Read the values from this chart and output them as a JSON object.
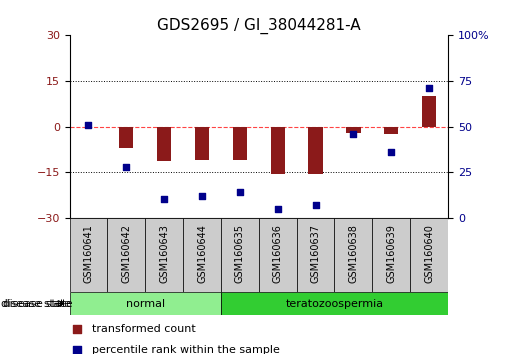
{
  "title": "GDS2695 / GI_38044281-A",
  "samples": [
    "GSM160641",
    "GSM160642",
    "GSM160643",
    "GSM160644",
    "GSM160635",
    "GSM160636",
    "GSM160637",
    "GSM160638",
    "GSM160639",
    "GSM160640"
  ],
  "disease_state_groups": [
    {
      "label": "normal",
      "start": 0,
      "end": 4,
      "color": "#90EE90"
    },
    {
      "label": "teratozoospermia",
      "start": 4,
      "end": 10,
      "color": "#32CD32"
    }
  ],
  "transformed_count": [
    0.0,
    -7.0,
    -11.5,
    -11.0,
    -11.0,
    -15.5,
    -15.5,
    -2.0,
    -2.5,
    10.0
  ],
  "percentile_rank": [
    51,
    28,
    10,
    12,
    14,
    5,
    7,
    46,
    36,
    71
  ],
  "ylim_left": [
    -30,
    30
  ],
  "ylim_right": [
    0,
    100
  ],
  "yticks_left": [
    -30,
    -15,
    0,
    15,
    30
  ],
  "yticks_right": [
    0,
    25,
    50,
    75,
    100
  ],
  "bar_color": "#8B1A1A",
  "dot_color": "#00008B",
  "zero_line_color": "#FF4444",
  "grid_color": "#000000",
  "title_fontsize": 11,
  "legend_fontsize": 8,
  "tick_fontsize": 8,
  "sample_label_fontsize": 7,
  "disease_state_label": "disease state",
  "legend_items": [
    "transformed count",
    "percentile rank within the sample"
  ],
  "background_color": "#FFFFFF",
  "normal_color": "#90EE90",
  "tera_color": "#32CD32",
  "gray_color": "#CCCCCC"
}
